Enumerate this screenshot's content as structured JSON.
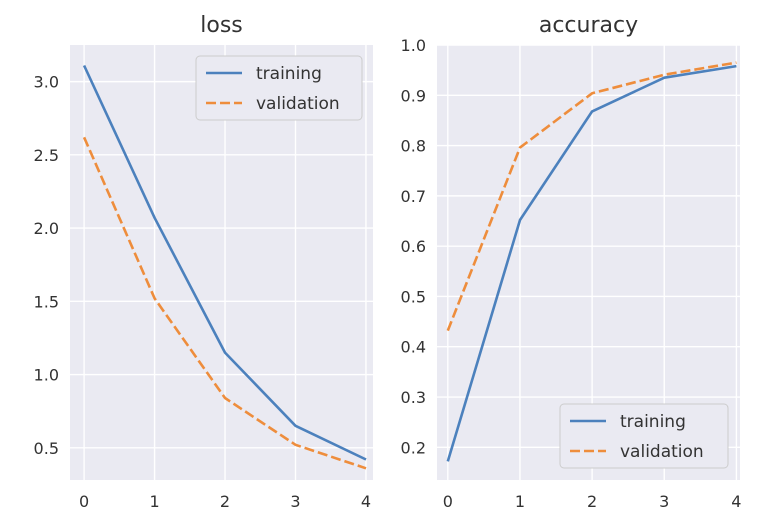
{
  "chart_data": [
    {
      "type": "line",
      "title": "loss",
      "xlabel": "",
      "ylabel": "",
      "x": [
        0,
        1,
        2,
        3,
        4
      ],
      "xticks": [
        "0",
        "1",
        "2",
        "3",
        "4"
      ],
      "xlim": [
        -0.2,
        4.1
      ],
      "yticks": [
        "0.5",
        "1.0",
        "1.5",
        "2.0",
        "2.5",
        "3.0"
      ],
      "ylim": [
        0.28,
        3.25
      ],
      "grid": true,
      "legend_position": "top-right",
      "series": [
        {
          "name": "training",
          "values": [
            3.11,
            2.07,
            1.15,
            0.65,
            0.42
          ],
          "color": "#4c81bd",
          "style": "solid"
        },
        {
          "name": "validation",
          "values": [
            2.62,
            1.52,
            0.84,
            0.52,
            0.36
          ],
          "color": "#ee8d3c",
          "style": "dashed"
        }
      ]
    },
    {
      "type": "line",
      "title": "accuracy",
      "xlabel": "",
      "ylabel": "",
      "x": [
        0,
        1,
        2,
        3,
        4
      ],
      "xticks": [
        "0",
        "1",
        "2",
        "3",
        "4"
      ],
      "xlim": [
        -0.15,
        4.05
      ],
      "yticks": [
        "0.2",
        "0.3",
        "0.4",
        "0.5",
        "0.6",
        "0.7",
        "0.8",
        "0.9",
        "1.0"
      ],
      "ylim": [
        0.135,
        1.0
      ],
      "grid": true,
      "legend_position": "bottom-right",
      "series": [
        {
          "name": "training",
          "values": [
            0.172,
            0.652,
            0.868,
            0.935,
            0.958
          ],
          "color": "#4c81bd",
          "style": "solid"
        },
        {
          "name": "validation",
          "values": [
            0.432,
            0.796,
            0.904,
            0.941,
            0.965
          ],
          "color": "#ee8d3c",
          "style": "dashed"
        }
      ]
    }
  ]
}
